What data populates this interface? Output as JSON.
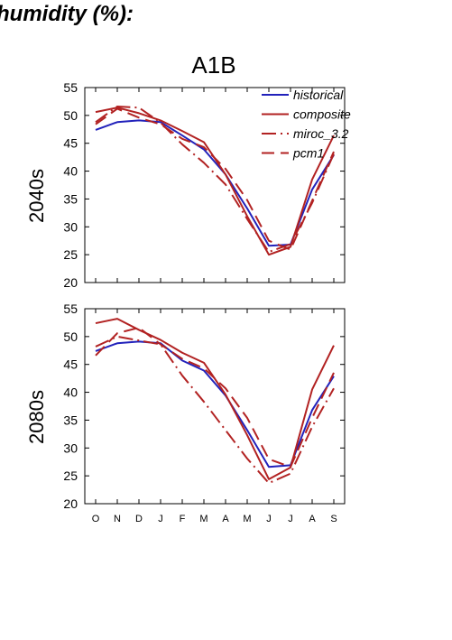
{
  "page": {
    "title": "humidity (%):"
  },
  "chart_data": {
    "type": "line",
    "title": "A1B",
    "x": [
      "O",
      "N",
      "D",
      "J",
      "F",
      "M",
      "A",
      "M",
      "J",
      "J",
      "A",
      "S"
    ],
    "ylim": [
      20,
      55
    ],
    "yticks": [
      20,
      25,
      30,
      35,
      40,
      45,
      50,
      55
    ],
    "grid": false,
    "legend_position": "top-right",
    "legend": [
      "historical",
      "composite",
      "miroc_3.2",
      "pcm1"
    ],
    "colors": {
      "historical": "#2222bb",
      "composite": "#b22222",
      "miroc_3.2": "#b22222",
      "pcm1": "#b22222"
    },
    "panels": [
      {
        "ylabel": "2040s",
        "series": [
          {
            "name": "historical",
            "values": [
              47.4,
              48.8,
              49.1,
              48.8,
              46.4,
              43.9,
              39.4,
              33.3,
              26.6,
              26.8,
              36.7,
              42.9
            ]
          },
          {
            "name": "composite",
            "values": [
              50.6,
              51.4,
              50.4,
              49.1,
              47.2,
              45.2,
              39.4,
              31.9,
              25.0,
              26.4,
              38.5,
              46.4
            ]
          },
          {
            "name": "miroc_3.2",
            "values": [
              48.8,
              51.6,
              51.4,
              48.7,
              44.8,
              41.5,
              37.6,
              31.4,
              25.5,
              26.9,
              34.3,
              43.1
            ]
          },
          {
            "name": "pcm1",
            "values": [
              48.4,
              51.2,
              49.6,
              48.4,
              45.8,
              44.3,
              40.4,
              34.8,
              27.5,
              25.9,
              34.7,
              43.5
            ]
          }
        ]
      },
      {
        "ylabel": "2080s",
        "series": [
          {
            "name": "historical",
            "values": [
              47.4,
              48.8,
              49.1,
              48.8,
              45.7,
              43.9,
              39.4,
              33.2,
              26.6,
              26.9,
              36.8,
              42.9
            ]
          },
          {
            "name": "composite",
            "values": [
              52.4,
              53.2,
              51.2,
              49.4,
              47.1,
              45.3,
              39.6,
              32.3,
              24.4,
              26.5,
              40.5,
              48.4
            ]
          },
          {
            "name": "miroc_3.2",
            "values": [
              48.2,
              50.0,
              49.3,
              48.6,
              43.0,
              38.3,
              33.2,
              28.1,
              23.7,
              25.4,
              33.8,
              40.7
            ]
          },
          {
            "name": "pcm1",
            "values": [
              46.6,
              50.6,
              51.6,
              48.6,
              46.0,
              44.3,
              40.7,
              35.4,
              28.0,
              26.6,
              35.4,
              43.5
            ]
          }
        ]
      }
    ]
  }
}
